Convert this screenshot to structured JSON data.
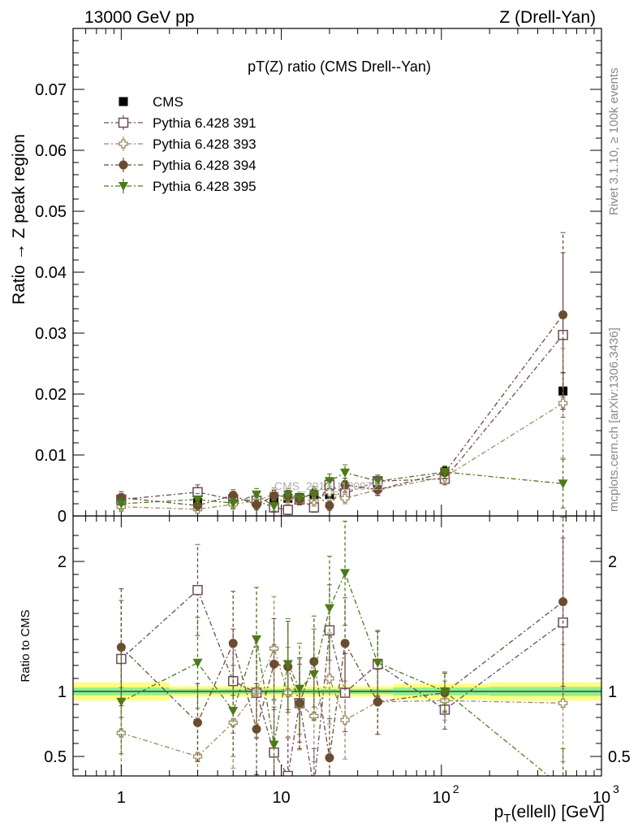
{
  "header": {
    "left": "13000 GeV pp",
    "right": "Z (Drell-Yan)"
  },
  "side_labels": {
    "rivet": "Rivet 3.1.10, ≥ 100k events",
    "mcplots": "mcplots.cern.ch [arXiv:1306.3436]"
  },
  "watermark": "CMS_2013_I1209721",
  "chart_data": [
    {
      "type": "scatter",
      "title": "pT(Z) ratio (CMS Drell--Yan)",
      "ylabel": "Ratio → Z peak region",
      "xscale": "log",
      "xlim": [
        0.5,
        1000
      ],
      "ylim": [
        0,
        0.08
      ],
      "yticks": [
        "0",
        "0.01",
        "0.02",
        "0.03",
        "0.04",
        "0.05",
        "0.06",
        "0.07"
      ],
      "legend_position": "top-left",
      "x": [
        1,
        3,
        5,
        7,
        9,
        11,
        13,
        16,
        20,
        25,
        40,
        105,
        575
      ],
      "series": [
        {
          "name": "CMS",
          "color": "#000000",
          "marker": "filled-square",
          "line": "none",
          "values": [
            0.0022,
            0.0022,
            0.0025,
            0.0025,
            0.0027,
            0.0029,
            0.003,
            0.0031,
            0.0035,
            0.0037,
            0.0047,
            0.0072,
            0.0205
          ],
          "errors": [
            0.0005,
            0.0005,
            0.0004,
            0.0004,
            0.0004,
            0.0004,
            0.0004,
            0.0004,
            0.0005,
            0.0005,
            0.0006,
            0.0008,
            0.003
          ]
        },
        {
          "name": "Pythia 6.428 391",
          "color": "#6e4a5c",
          "marker": "open-square",
          "line": "dash-dot",
          "values": [
            0.0027,
            0.0039,
            0.0027,
            0.0025,
            0.0014,
            0.001,
            0.0027,
            0.0014,
            0.0051,
            0.0037,
            0.0057,
            0.0061,
            0.0297
          ],
          "errors": [
            0.001,
            0.0012,
            0.0009,
            0.0009,
            0.0008,
            0.0008,
            0.0009,
            0.0008,
            0.0012,
            0.001,
            0.001,
            0.001,
            0.0135
          ]
        },
        {
          "name": "Pythia 6.428 393",
          "color": "#9c8b62",
          "marker": "open-cross",
          "line": "dash-dot",
          "values": [
            0.0015,
            0.0011,
            0.0019,
            0.0025,
            0.0036,
            0.0029,
            0.0027,
            0.0025,
            0.0039,
            0.0029,
            0.0043,
            0.0064,
            0.0185
          ],
          "errors": [
            0.0008,
            0.0007,
            0.0008,
            0.0009,
            0.001,
            0.0009,
            0.0009,
            0.0009,
            0.001,
            0.0009,
            0.001,
            0.001,
            0.009
          ]
        },
        {
          "name": "Pythia 6.428 394",
          "color": "#6b4c30",
          "marker": "filled-circle",
          "line": "dash-dot",
          "values": [
            0.003,
            0.0017,
            0.0034,
            0.0018,
            0.0033,
            0.0033,
            0.0027,
            0.0038,
            0.0017,
            0.0051,
            0.0043,
            0.0071,
            0.033
          ],
          "errors": [
            0.001,
            0.0008,
            0.0009,
            0.0008,
            0.0009,
            0.0009,
            0.0009,
            0.001,
            0.0008,
            0.0011,
            0.0009,
            0.001,
            0.0135
          ]
        },
        {
          "name": "Pythia 6.428 395",
          "color": "#4d7a19",
          "marker": "filled-triangle-down",
          "line": "dash-dot",
          "values": [
            0.002,
            0.0027,
            0.0021,
            0.0035,
            0.0016,
            0.0035,
            0.003,
            0.0035,
            0.0057,
            0.0071,
            0.0057,
            0.0072,
            0.0053
          ],
          "errors": [
            0.0009,
            0.001,
            0.0008,
            0.001,
            0.0008,
            0.001,
            0.0009,
            0.001,
            0.0012,
            0.0013,
            0.001,
            0.001,
            0.004
          ]
        }
      ]
    },
    {
      "type": "scatter",
      "ylabel": "Ratio to CMS",
      "xlabel": "p_T(ellell) [GeV]",
      "xscale": "log",
      "xlim": [
        0.5,
        1000
      ],
      "xticks": [
        "1",
        "10",
        "10^2",
        "10^3"
      ],
      "ylim": [
        0.35,
        2.35
      ],
      "yticks": [
        "0.5",
        "1",
        "2"
      ],
      "reference_line": 1,
      "bands": [
        {
          "color": "#ffff80",
          "x": [
            0.5,
            2,
            50,
            200,
            1000
          ],
          "halfwidth": [
            0.07,
            0.04,
            0.06,
            0.07,
            0.07
          ]
        },
        {
          "color": "#90ee90",
          "x": [
            0.5,
            2,
            50,
            200,
            1000
          ],
          "halfwidth": [
            0.03,
            0.02,
            0.03,
            0.035,
            0.035
          ]
        }
      ],
      "x": [
        1,
        3,
        5,
        7,
        9,
        11,
        13,
        16,
        20,
        25,
        40,
        105,
        575
      ],
      "series": [
        {
          "name": "Pythia 6.428 391",
          "color": "#6e4a5c",
          "marker": "open-square",
          "values": [
            1.25,
            1.78,
            1.08,
            0.99,
            0.53,
            0.35,
            0.91,
            0.26,
            1.47,
            0.99,
            1.21,
            0.86,
            1.53
          ],
          "errors": [
            0.45,
            0.35,
            0.4,
            0.35,
            0.35,
            0.3,
            0.3,
            0.3,
            0.35,
            0.3,
            0.25,
            0.15,
            0.65
          ]
        },
        {
          "name": "Pythia 6.428 393",
          "color": "#9c8b62",
          "marker": "open-cross",
          "values": [
            0.68,
            0.5,
            0.76,
            1.0,
            1.33,
            0.99,
            0.9,
            0.81,
            1.1,
            0.78,
            0.92,
            0.93,
            0.91
          ],
          "errors": [
            0.35,
            0.3,
            0.35,
            0.35,
            0.4,
            0.35,
            0.35,
            0.35,
            0.35,
            0.3,
            0.25,
            0.15,
            0.45
          ]
        },
        {
          "name": "Pythia 6.428 394",
          "color": "#6b4c30",
          "marker": "filled-circle",
          "values": [
            1.34,
            0.76,
            1.37,
            0.71,
            1.21,
            1.19,
            0.91,
            1.23,
            0.49,
            1.37,
            0.92,
            0.99,
            1.69
          ],
          "errors": [
            0.45,
            0.3,
            0.4,
            0.35,
            0.35,
            0.35,
            0.35,
            0.35,
            0.3,
            0.35,
            0.25,
            0.15,
            0.65
          ]
        },
        {
          "name": "Pythia 6.428 395",
          "color": "#4d7a19",
          "marker": "filled-triangle-down",
          "values": [
            0.92,
            1.22,
            0.85,
            1.4,
            0.59,
            1.21,
            1.02,
            1.13,
            1.64,
            1.91,
            1.22,
            1.0,
            0.26
          ],
          "errors": [
            0.4,
            0.35,
            0.35,
            0.4,
            0.35,
            0.35,
            0.35,
            0.35,
            0.4,
            0.4,
            0.25,
            0.15,
            0.3
          ]
        }
      ]
    }
  ]
}
